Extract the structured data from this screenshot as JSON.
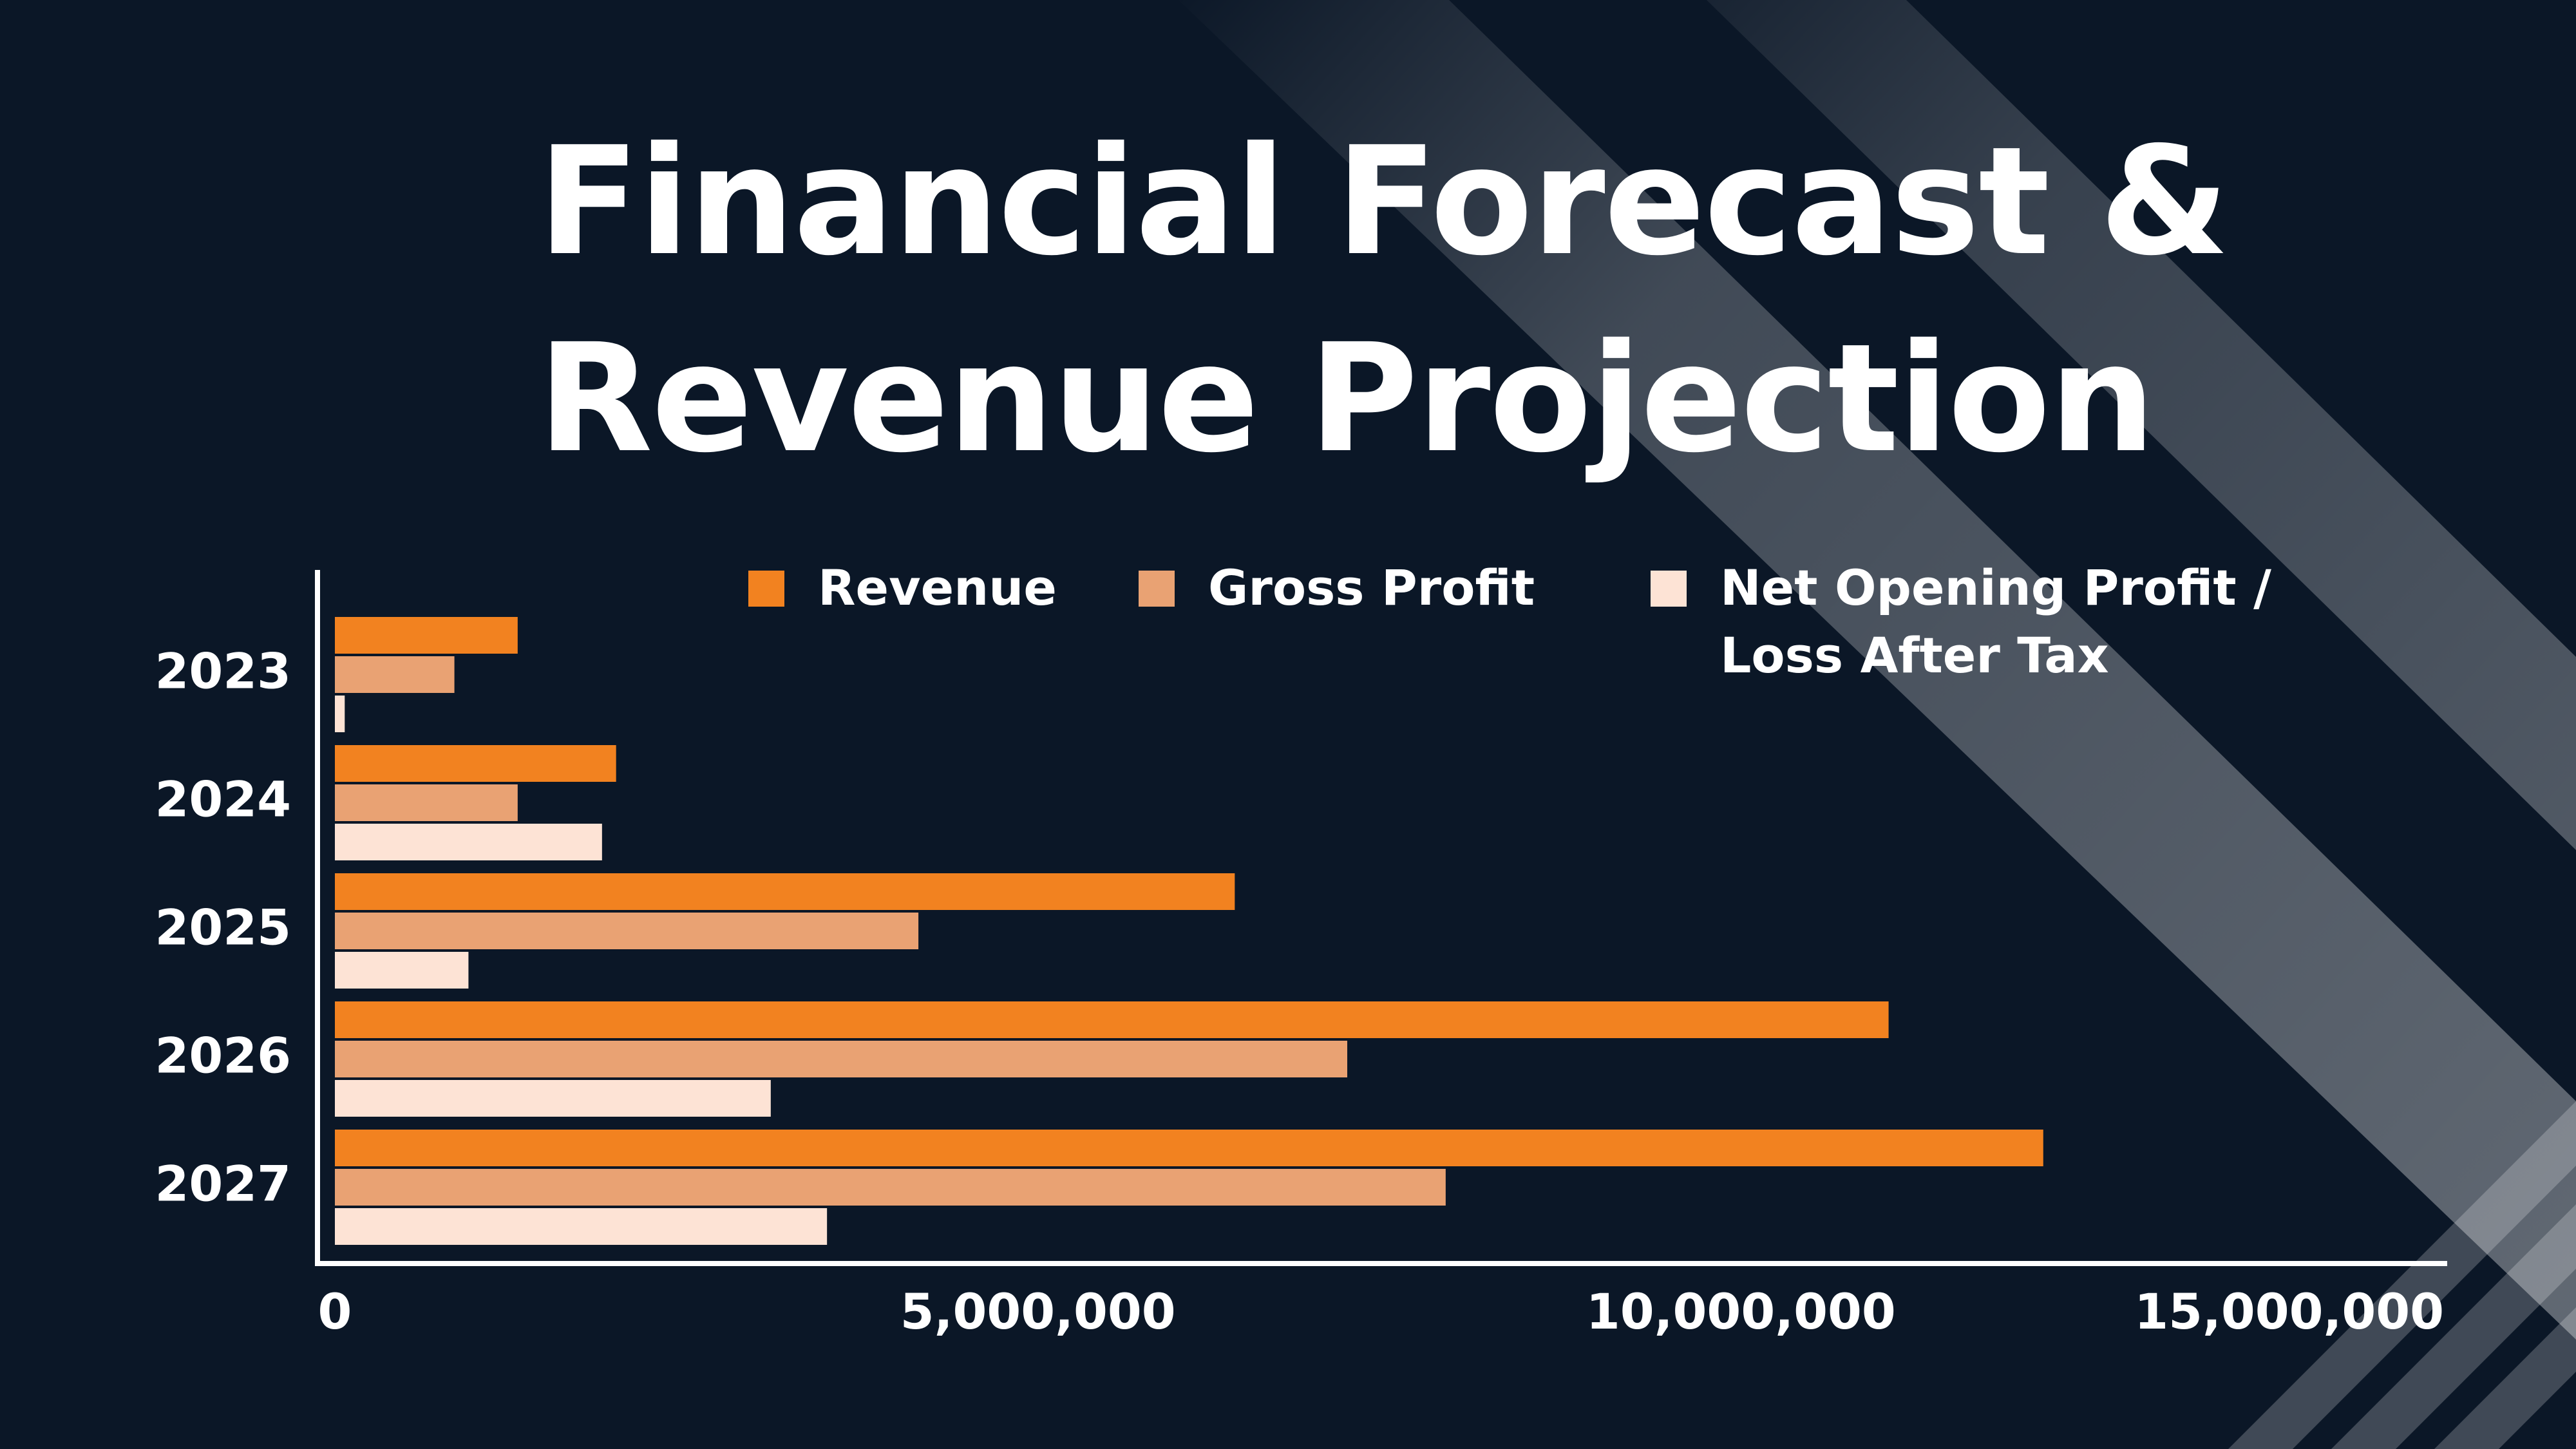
{
  "title": {
    "line1": "Financial Forecast &",
    "line2": "Revenue Projection"
  },
  "colors": {
    "background": "#0b1727",
    "revenue": "#f28220",
    "gross_profit": "#e9a273",
    "net_profit": "#fde3d5",
    "axis": "#ffffff",
    "text": "#ffffff"
  },
  "chart_data": {
    "type": "bar",
    "orientation": "horizontal",
    "categories": [
      "2023",
      "2024",
      "2025",
      "2026",
      "2027"
    ],
    "series": [
      {
        "name": "Revenue",
        "color": "#f28220",
        "values": [
          1300000,
          2000000,
          6400000,
          11050000,
          12150000
        ]
      },
      {
        "name": "Gross Profit",
        "color": "#e9a273",
        "values": [
          850000,
          1300000,
          4150000,
          7200000,
          7900000
        ]
      },
      {
        "name": "Net Opening Profit / Loss After Tax",
        "color": "#fde3d5",
        "values": [
          70000,
          1900000,
          950000,
          3100000,
          3500000
        ]
      }
    ],
    "xlim": [
      0,
      15000000
    ],
    "xticks": [
      {
        "value": 0,
        "label": "0"
      },
      {
        "value": 5000000,
        "label": "5,000,000"
      },
      {
        "value": 10000000,
        "label": "10,000,000"
      },
      {
        "value": 15000000,
        "label": "15,000,000"
      }
    ],
    "legend": {
      "position": "top-right",
      "entries": [
        {
          "line1": "Revenue",
          "line2": ""
        },
        {
          "line1": "Gross Profit",
          "line2": ""
        },
        {
          "line1": "Net Opening Profit /",
          "line2": "Loss After Tax"
        }
      ]
    },
    "grid": false,
    "xlabel": "",
    "ylabel": ""
  }
}
